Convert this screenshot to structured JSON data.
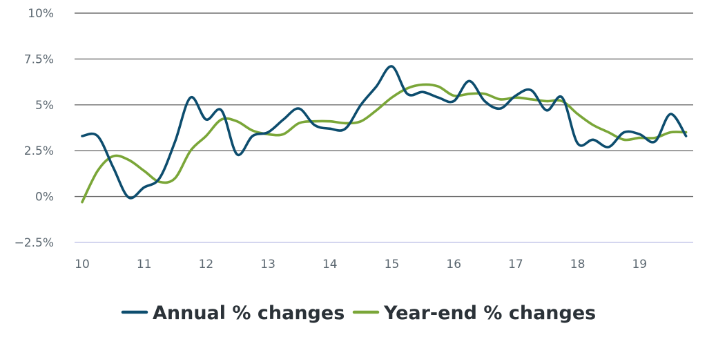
{
  "colors": {
    "annual": "#0d4d6e",
    "year_end": "#7aa638",
    "grid": "#6e6e6e",
    "zero_bottom": "#c5c8ea",
    "tick_text": "#5b6770"
  },
  "chart_data": {
    "type": "line",
    "title": "",
    "xlabel": "",
    "ylabel": "",
    "xlim": [
      10,
      19.85
    ],
    "ylim": [
      -2.5,
      10
    ],
    "y_ticks": [
      {
        "value": 10,
        "label": "10%"
      },
      {
        "value": 7.5,
        "label": "7.5%"
      },
      {
        "value": 5,
        "label": "5%"
      },
      {
        "value": 2.5,
        "label": "2.5%"
      },
      {
        "value": 0,
        "label": "0%"
      },
      {
        "value": -2.5,
        "label": "−2.5%"
      }
    ],
    "x_ticks": [
      {
        "value": 10,
        "label": "10"
      },
      {
        "value": 11,
        "label": "11"
      },
      {
        "value": 12,
        "label": "12"
      },
      {
        "value": 13,
        "label": "13"
      },
      {
        "value": 14,
        "label": "14"
      },
      {
        "value": 15,
        "label": "15"
      },
      {
        "value": 16,
        "label": "16"
      },
      {
        "value": 17,
        "label": "17"
      },
      {
        "value": 18,
        "label": "18"
      },
      {
        "value": 19,
        "label": "19"
      }
    ],
    "legend_position": "bottom",
    "series": [
      {
        "name": "Annual % changes",
        "color": "#0d4d6e",
        "points": [
          [
            10.0,
            3.3
          ],
          [
            10.25,
            3.3
          ],
          [
            10.5,
            1.6
          ],
          [
            10.75,
            -0.05
          ],
          [
            11.0,
            0.5
          ],
          [
            11.25,
            1.0
          ],
          [
            11.5,
            3.0
          ],
          [
            11.75,
            5.4
          ],
          [
            12.0,
            4.2
          ],
          [
            12.25,
            4.7
          ],
          [
            12.5,
            2.3
          ],
          [
            12.75,
            3.3
          ],
          [
            13.0,
            3.5
          ],
          [
            13.25,
            4.2
          ],
          [
            13.5,
            4.8
          ],
          [
            13.75,
            3.9
          ],
          [
            14.0,
            3.7
          ],
          [
            14.25,
            3.7
          ],
          [
            14.5,
            5.0
          ],
          [
            14.75,
            6.0
          ],
          [
            15.0,
            7.1
          ],
          [
            15.25,
            5.6
          ],
          [
            15.5,
            5.7
          ],
          [
            15.75,
            5.4
          ],
          [
            16.0,
            5.2
          ],
          [
            16.25,
            6.3
          ],
          [
            16.5,
            5.2
          ],
          [
            16.75,
            4.8
          ],
          [
            17.0,
            5.5
          ],
          [
            17.25,
            5.8
          ],
          [
            17.5,
            4.7
          ],
          [
            17.75,
            5.4
          ],
          [
            18.0,
            2.9
          ],
          [
            18.25,
            3.1
          ],
          [
            18.5,
            2.7
          ],
          [
            18.75,
            3.5
          ],
          [
            19.0,
            3.4
          ],
          [
            19.25,
            3.0
          ],
          [
            19.5,
            4.5
          ],
          [
            19.75,
            3.3
          ]
        ]
      },
      {
        "name": "Year-end % changes",
        "color": "#7aa638",
        "points": [
          [
            10.0,
            -0.3
          ],
          [
            10.25,
            1.4
          ],
          [
            10.5,
            2.2
          ],
          [
            10.75,
            2.0
          ],
          [
            11.0,
            1.4
          ],
          [
            11.25,
            0.8
          ],
          [
            11.5,
            1.0
          ],
          [
            11.75,
            2.5
          ],
          [
            12.0,
            3.3
          ],
          [
            12.25,
            4.2
          ],
          [
            12.5,
            4.1
          ],
          [
            12.75,
            3.6
          ],
          [
            13.0,
            3.4
          ],
          [
            13.25,
            3.4
          ],
          [
            13.5,
            4.0
          ],
          [
            13.75,
            4.1
          ],
          [
            14.0,
            4.1
          ],
          [
            14.25,
            4.0
          ],
          [
            14.5,
            4.1
          ],
          [
            14.75,
            4.7
          ],
          [
            15.0,
            5.4
          ],
          [
            15.25,
            5.9
          ],
          [
            15.5,
            6.1
          ],
          [
            15.75,
            6.0
          ],
          [
            16.0,
            5.5
          ],
          [
            16.25,
            5.6
          ],
          [
            16.5,
            5.6
          ],
          [
            16.75,
            5.3
          ],
          [
            17.0,
            5.4
          ],
          [
            17.25,
            5.3
          ],
          [
            17.5,
            5.2
          ],
          [
            17.75,
            5.2
          ],
          [
            18.0,
            4.5
          ],
          [
            18.25,
            3.9
          ],
          [
            18.5,
            3.5
          ],
          [
            18.75,
            3.1
          ],
          [
            19.0,
            3.2
          ],
          [
            19.25,
            3.2
          ],
          [
            19.5,
            3.5
          ],
          [
            19.75,
            3.5
          ]
        ]
      }
    ]
  }
}
